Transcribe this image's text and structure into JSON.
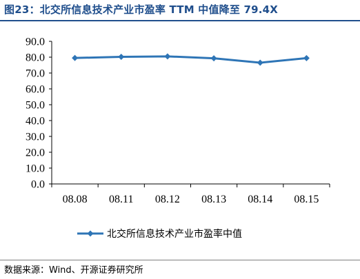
{
  "figure": {
    "title": "图23：北交所信息技术产业市盈率 TTM 中值降至 79.4X",
    "source": "数据来源：Wind、开源证券研究所"
  },
  "chart_data": {
    "type": "line",
    "title": "图23：北交所信息技术产业市盈率 TTM 中值降至 79.4X",
    "xlabel": "",
    "ylabel": "",
    "categories": [
      "08.08",
      "08.11",
      "08.12",
      "08.13",
      "08.14",
      "08.15"
    ],
    "series": [
      {
        "name": "北交所信息技术产业市盈率中值",
        "color": "#2e75b6",
        "marker": "diamond",
        "values": [
          79.5,
          80.2,
          80.5,
          79.3,
          76.5,
          79.4
        ]
      }
    ],
    "ylim": [
      0,
      90
    ],
    "yticks": [
      "0.0",
      "10.0",
      "20.0",
      "30.0",
      "40.0",
      "50.0",
      "60.0",
      "70.0",
      "80.0",
      "90.0"
    ],
    "grid": false,
    "legend_position": "bottom-center"
  }
}
